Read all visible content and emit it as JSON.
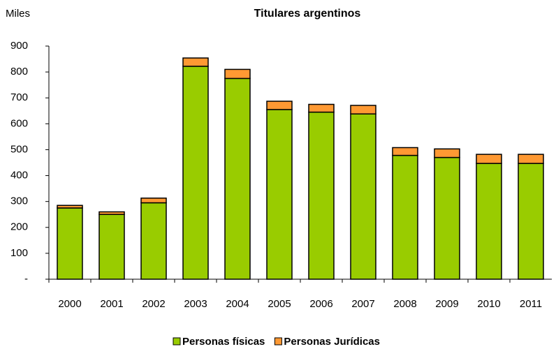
{
  "chart_data": {
    "type": "bar",
    "stacked": true,
    "title": "Titulares argentinos",
    "y_label": "Miles",
    "categories": [
      "2000",
      "2001",
      "2002",
      "2003",
      "2004",
      "2005",
      "2006",
      "2007",
      "2008",
      "2009",
      "2010",
      "2011"
    ],
    "series": [
      {
        "name": "Personas físicas",
        "color": "#99cc00",
        "values": [
          275,
          250,
          295,
          822,
          775,
          655,
          645,
          638,
          478,
          470,
          447,
          447
        ]
      },
      {
        "name": "Personas Jurídicas",
        "color": "#ff9933",
        "values": [
          10,
          10,
          18,
          32,
          35,
          32,
          30,
          33,
          30,
          33,
          35,
          35
        ]
      }
    ],
    "ylim": [
      0,
      900
    ],
    "yticks": [
      {
        "value": 0,
        "label": "-"
      },
      100,
      200,
      300,
      400,
      500,
      600,
      700,
      800,
      900
    ],
    "legend": "bottom"
  }
}
